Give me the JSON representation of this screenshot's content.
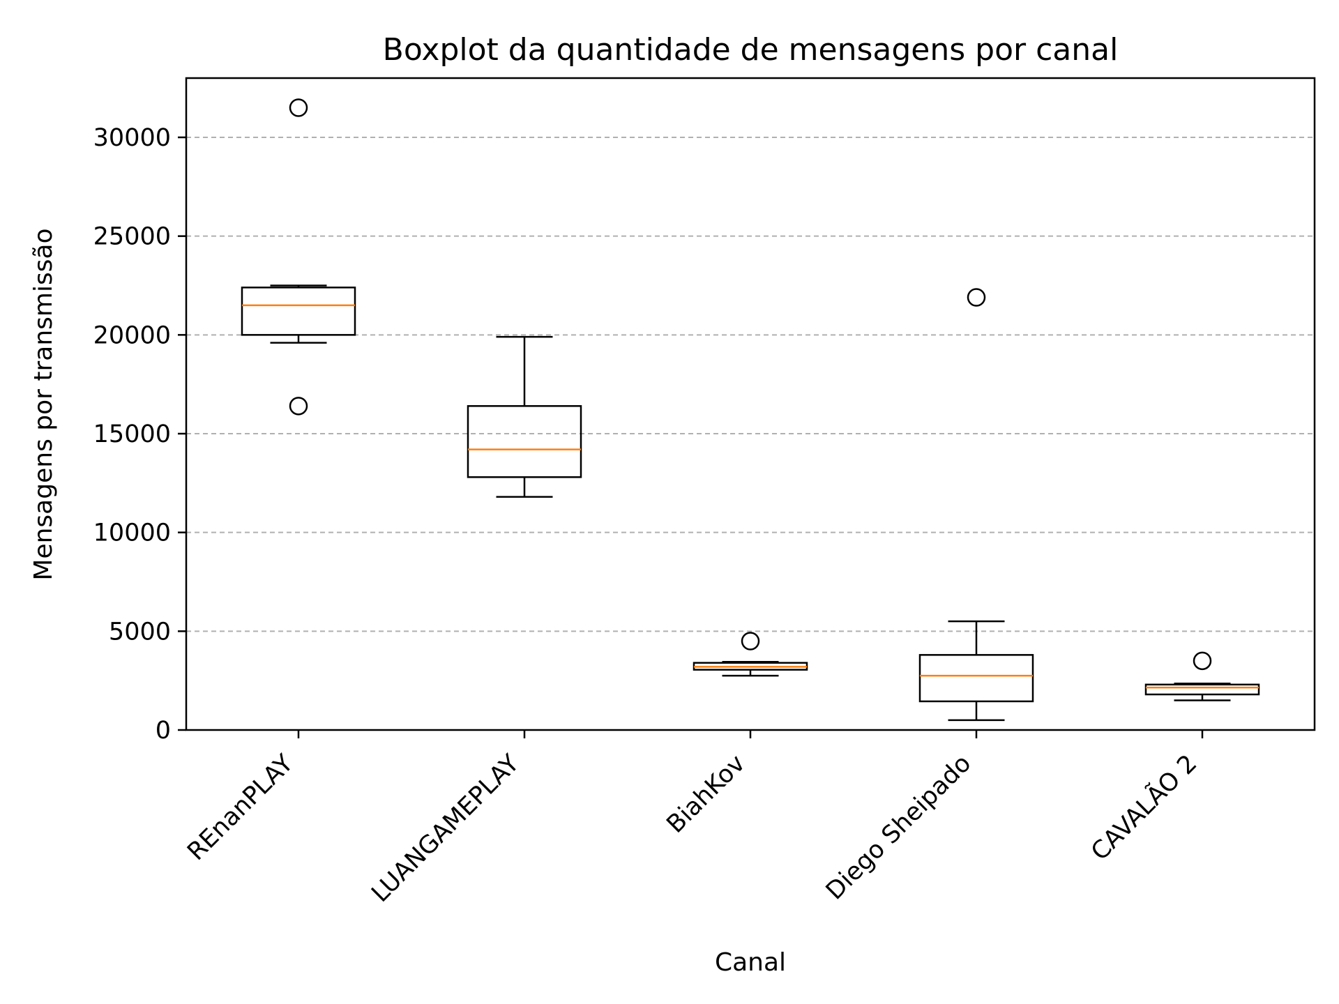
{
  "chart_data": {
    "type": "boxplot",
    "title": "Boxplot da quantidade de mensagens por canal",
    "xlabel": "Canal",
    "ylabel": "Mensagens por transmissão",
    "ylim": [
      0,
      33000
    ],
    "yticks": [
      0,
      5000,
      10000,
      15000,
      20000,
      25000,
      30000
    ],
    "grid": {
      "axis": "y",
      "style": "dashed"
    },
    "colors": {
      "box": "#000000",
      "median": "#ff7f0e",
      "grid": "#b0b0b0"
    },
    "categories": [
      "REnanPLAY",
      "LUANGAMEPLAY",
      "BiahKov",
      "Diego Sheipado",
      "CAVALÃO 2"
    ],
    "boxes": [
      {
        "category": "REnanPLAY",
        "whisker_low": 19600,
        "q1": 20000,
        "median": 21500,
        "q3": 22400,
        "whisker_high": 22500,
        "outliers": [
          31500,
          16400
        ]
      },
      {
        "category": "LUANGAMEPLAY",
        "whisker_low": 11800,
        "q1": 12800,
        "median": 14200,
        "q3": 16400,
        "whisker_high": 19900,
        "outliers": []
      },
      {
        "category": "BiahKov",
        "whisker_low": 2750,
        "q1": 3050,
        "median": 3200,
        "q3": 3400,
        "whisker_high": 3450,
        "outliers": [
          4500
        ]
      },
      {
        "category": "Diego Sheipado",
        "whisker_low": 500,
        "q1": 1450,
        "median": 2750,
        "q3": 3800,
        "whisker_high": 5500,
        "outliers": [
          21900
        ]
      },
      {
        "category": "CAVALÃO 2",
        "whisker_low": 1500,
        "q1": 1800,
        "median": 2150,
        "q3": 2300,
        "whisker_high": 2350,
        "outliers": [
          3500
        ]
      }
    ]
  }
}
